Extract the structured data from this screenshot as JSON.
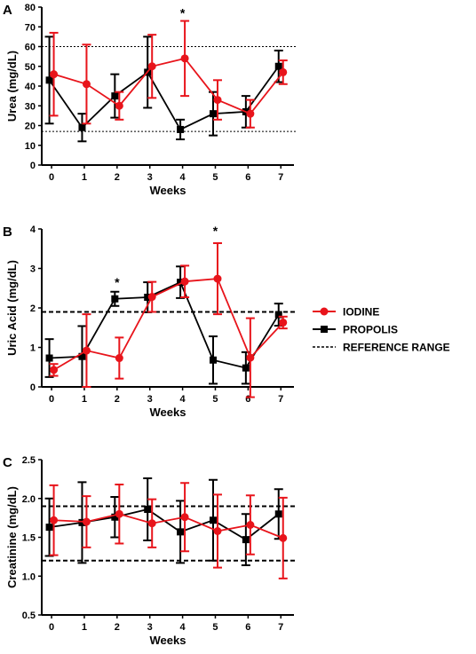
{
  "colors": {
    "iodine": "#e8141b",
    "propolis": "#000000",
    "reference": "#000000"
  },
  "legend": {
    "iodine": "IODINE",
    "propolis": "PROPOLIS",
    "reference": "REFERENCE RANGE"
  },
  "chart_data": [
    {
      "type": "line",
      "panel": "A",
      "xlabel": "Weeks",
      "ylabel": "Urea (mg/dL)",
      "x": [
        0,
        1,
        2,
        3,
        4,
        5,
        6,
        7
      ],
      "xlim": [
        -0.3,
        7.4
      ],
      "ylim": [
        0,
        80
      ],
      "yticks": [
        0,
        10,
        20,
        30,
        40,
        50,
        60,
        70,
        80
      ],
      "ytick_labels": [
        "0",
        "10",
        "20",
        "30",
        "40",
        "50",
        "60",
        "70",
        "80"
      ],
      "reference_lines": [
        60,
        17
      ],
      "reference_style": "fine",
      "annotations": [
        {
          "x": 4,
          "y": 77,
          "text": "*"
        }
      ],
      "series": [
        {
          "name": "IODINE",
          "values": [
            46,
            41,
            30,
            50,
            54,
            33,
            26,
            47
          ],
          "errors": [
            21,
            20,
            7,
            16,
            19,
            10,
            7,
            6
          ]
        },
        {
          "name": "PROPOLIS",
          "values": [
            43,
            19,
            35,
            47,
            18,
            26,
            27,
            50
          ],
          "errors": [
            22,
            7,
            11,
            18,
            5,
            11,
            8,
            8
          ]
        }
      ]
    },
    {
      "type": "line",
      "panel": "B",
      "xlabel": "Weeks",
      "ylabel": "Uric Acid (mg/dL)",
      "x": [
        0,
        1,
        2,
        3,
        4,
        5,
        6,
        7
      ],
      "xlim": [
        -0.3,
        7.4
      ],
      "ylim": [
        0,
        4
      ],
      "yticks": [
        0,
        1,
        2,
        3,
        4
      ],
      "ytick_labels": [
        "0",
        "1",
        "2",
        "3",
        "4"
      ],
      "reference_lines": [
        1.9
      ],
      "reference_style": "dashed",
      "annotations": [
        {
          "x": 2,
          "y": 2.65,
          "text": "*"
        },
        {
          "x": 5,
          "y": 3.95,
          "text": "*"
        }
      ],
      "series": [
        {
          "name": "IODINE",
          "values": [
            0.43,
            0.92,
            0.73,
            2.28,
            2.67,
            2.74,
            0.74,
            1.63
          ],
          "errors": [
            0.15,
            0.92,
            0.52,
            0.38,
            0.4,
            0.9,
            1.0,
            0.15
          ]
        },
        {
          "name": "PROPOLIS",
          "values": [
            0.73,
            0.77,
            2.23,
            2.27,
            2.65,
            0.68,
            0.48,
            1.83
          ],
          "errors": [
            0.48,
            0.77,
            0.18,
            0.38,
            0.4,
            0.6,
            0.4,
            0.28
          ]
        }
      ]
    },
    {
      "type": "line",
      "panel": "C",
      "xlabel": "Weeks",
      "ylabel": "Creatinine (mg/dL)",
      "x": [
        0,
        1,
        2,
        3,
        4,
        5,
        6,
        7
      ],
      "xlim": [
        -0.3,
        7.4
      ],
      "ylim": [
        0.5,
        2.5
      ],
      "yticks": [
        0.5,
        1.0,
        1.5,
        2.0,
        2.5
      ],
      "ytick_labels": [
        "0.5",
        "1.0",
        "1.5",
        "2.0",
        "2.5"
      ],
      "reference_lines": [
        1.9,
        1.2
      ],
      "reference_style": "dashed",
      "annotations": [],
      "series": [
        {
          "name": "IODINE",
          "values": [
            1.72,
            1.7,
            1.8,
            1.68,
            1.76,
            1.58,
            1.66,
            1.49
          ],
          "errors": [
            0.45,
            0.33,
            0.38,
            0.31,
            0.44,
            0.47,
            0.38,
            0.52
          ]
        },
        {
          "name": "PROPOLIS",
          "values": [
            1.63,
            1.69,
            1.76,
            1.86,
            1.57,
            1.72,
            1.47,
            1.8
          ],
          "errors": [
            0.37,
            0.52,
            0.26,
            0.4,
            0.4,
            0.52,
            0.33,
            0.32
          ]
        }
      ]
    }
  ]
}
